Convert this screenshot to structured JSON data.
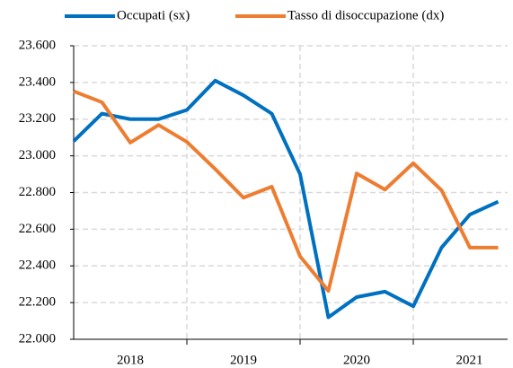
{
  "chart_data": {
    "type": "line",
    "categories": [
      null,
      null,
      null,
      null,
      null,
      null,
      null,
      null,
      null,
      null,
      null,
      null,
      null,
      null,
      null,
      null
    ],
    "x_group_labels": [
      "2018",
      "2019",
      "2020",
      "2021"
    ],
    "series": [
      {
        "name": "Occupati (sx)",
        "color": "#0070c0",
        "values": [
          23080,
          23230,
          23200,
          23200,
          23250,
          23410,
          23330,
          23230,
          22900,
          22120,
          22230,
          22260,
          22180,
          22500,
          22680,
          22750
        ]
      },
      {
        "name": "Tasso di disoccupazione (dx)",
        "color": "#ed7d31",
        "axis": "y2",
        "values": [
          11.38,
          11.23,
          10.68,
          10.92,
          10.69,
          10.32,
          9.93,
          10.08,
          9.13,
          8.66,
          10.26,
          10.04,
          10.4,
          10.03,
          9.25,
          9.25
        ]
      }
    ],
    "ylim": [
      22000,
      23600
    ],
    "yticks": [
      {
        "value": 22000,
        "label": "22.000"
      },
      {
        "value": 22200,
        "label": "22.200"
      },
      {
        "value": 22400,
        "label": "22.400"
      },
      {
        "value": 22600,
        "label": "22.600"
      },
      {
        "value": 22800,
        "label": "22.800"
      },
      {
        "value": 23000,
        "label": "23.000"
      },
      {
        "value": 23200,
        "label": "23.200"
      },
      {
        "value": 23400,
        "label": "23.400"
      },
      {
        "value": 23600,
        "label": "23.600"
      }
    ],
    "y2lim": [
      8,
      12
    ],
    "grid": true,
    "legend": "top"
  }
}
